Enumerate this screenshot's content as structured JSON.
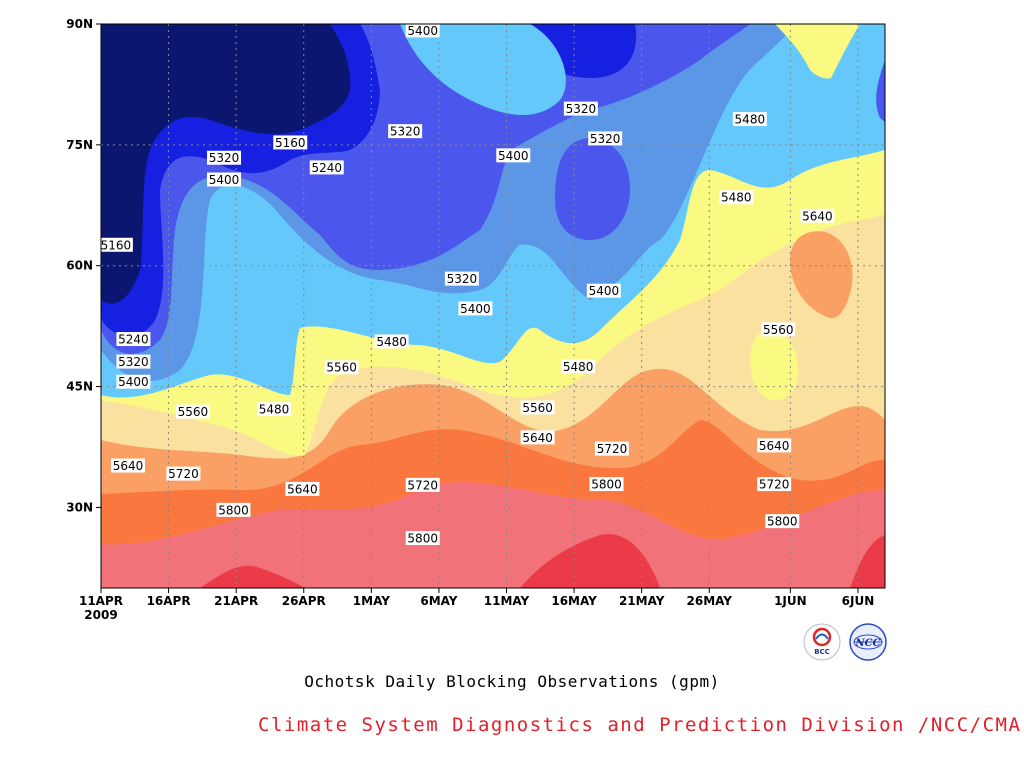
{
  "chart_data": {
    "type": "heatmap",
    "title": "Ochotsk Daily Blocking Observations (gpm)",
    "credit": "Climate System Diagnostics and Prediction Division /NCC/CMA",
    "x_tick_labels": [
      "11APR",
      "16APR",
      "21APR",
      "26APR",
      "1MAY",
      "6MAY",
      "11MAY",
      "16MAY",
      "21MAY",
      "26MAY",
      "1JUN",
      "6JUN"
    ],
    "x_year_label": "2009",
    "y_tick_labels": [
      "90N",
      "75N",
      "60N",
      "45N",
      "30N"
    ],
    "x_ticks_day": [
      0,
      5,
      10,
      15,
      20,
      25,
      30,
      35,
      40,
      45,
      51,
      56
    ],
    "y_ticks_lat": [
      90,
      75,
      60,
      45,
      30
    ],
    "xlim": [
      0,
      58
    ],
    "ylim": [
      20,
      90
    ],
    "grid": true,
    "levels": [
      5160,
      5240,
      5320,
      5400,
      5480,
      5560,
      5640,
      5720,
      5800
    ],
    "band_colors": [
      "#0a1670",
      "#1620e0",
      "#4a56ec",
      "#5c96e6",
      "#64c8fa",
      "#fafa82",
      "#fae1a0",
      "#faa064",
      "#fa7840",
      "#f2727a",
      "#eb3a48"
    ],
    "contour_labels": [
      {
        "text": "5400",
        "day": 23.8,
        "lat": 89.2
      },
      {
        "text": "5320",
        "day": 35.5,
        "lat": 79.5
      },
      {
        "text": "5320",
        "day": 22.5,
        "lat": 76.7
      },
      {
        "text": "5320",
        "day": 37.3,
        "lat": 75.8
      },
      {
        "text": "5160",
        "day": 14.0,
        "lat": 75.3
      },
      {
        "text": "5400",
        "day": 30.5,
        "lat": 73.7
      },
      {
        "text": "5320",
        "day": 9.1,
        "lat": 73.4
      },
      {
        "text": "5240",
        "day": 16.7,
        "lat": 72.2
      },
      {
        "text": "5400",
        "day": 9.1,
        "lat": 70.7
      },
      {
        "text": "5480",
        "day": 48.0,
        "lat": 78.2
      },
      {
        "text": "5480",
        "day": 47.0,
        "lat": 68.5
      },
      {
        "text": "5640",
        "day": 53.0,
        "lat": 66.2
      },
      {
        "text": "5160",
        "day": 1.1,
        "lat": 62.6
      },
      {
        "text": "5320",
        "day": 26.7,
        "lat": 58.4
      },
      {
        "text": "5400",
        "day": 37.2,
        "lat": 56.9
      },
      {
        "text": "5400",
        "day": 27.7,
        "lat": 54.7
      },
      {
        "text": "5560",
        "day": 50.1,
        "lat": 52.1
      },
      {
        "text": "5240",
        "day": 2.4,
        "lat": 50.9
      },
      {
        "text": "5480",
        "day": 21.5,
        "lat": 50.6
      },
      {
        "text": "5320",
        "day": 2.4,
        "lat": 48.1
      },
      {
        "text": "5560",
        "day": 17.8,
        "lat": 47.4
      },
      {
        "text": "5480",
        "day": 35.3,
        "lat": 47.5
      },
      {
        "text": "5400",
        "day": 2.4,
        "lat": 45.6
      },
      {
        "text": "5560",
        "day": 32.3,
        "lat": 42.4
      },
      {
        "text": "5560",
        "day": 6.8,
        "lat": 41.9
      },
      {
        "text": "5480",
        "day": 12.8,
        "lat": 42.2
      },
      {
        "text": "5640",
        "day": 32.3,
        "lat": 38.7
      },
      {
        "text": "5640",
        "day": 49.8,
        "lat": 37.7
      },
      {
        "text": "5720",
        "day": 37.8,
        "lat": 37.3
      },
      {
        "text": "5640",
        "day": 2.0,
        "lat": 35.2
      },
      {
        "text": "5720",
        "day": 6.1,
        "lat": 34.2
      },
      {
        "text": "5720",
        "day": 23.8,
        "lat": 32.8
      },
      {
        "text": "5800",
        "day": 37.4,
        "lat": 32.9
      },
      {
        "text": "5640",
        "day": 14.9,
        "lat": 32.3
      },
      {
        "text": "5720",
        "day": 49.8,
        "lat": 32.9
      },
      {
        "text": "5800",
        "day": 9.8,
        "lat": 29.7
      },
      {
        "text": "5800",
        "day": 50.4,
        "lat": 28.3
      },
      {
        "text": "5800",
        "day": 23.8,
        "lat": 26.2
      }
    ]
  },
  "logos": {
    "left_text": "BCC",
    "right_text": "NCC"
  }
}
